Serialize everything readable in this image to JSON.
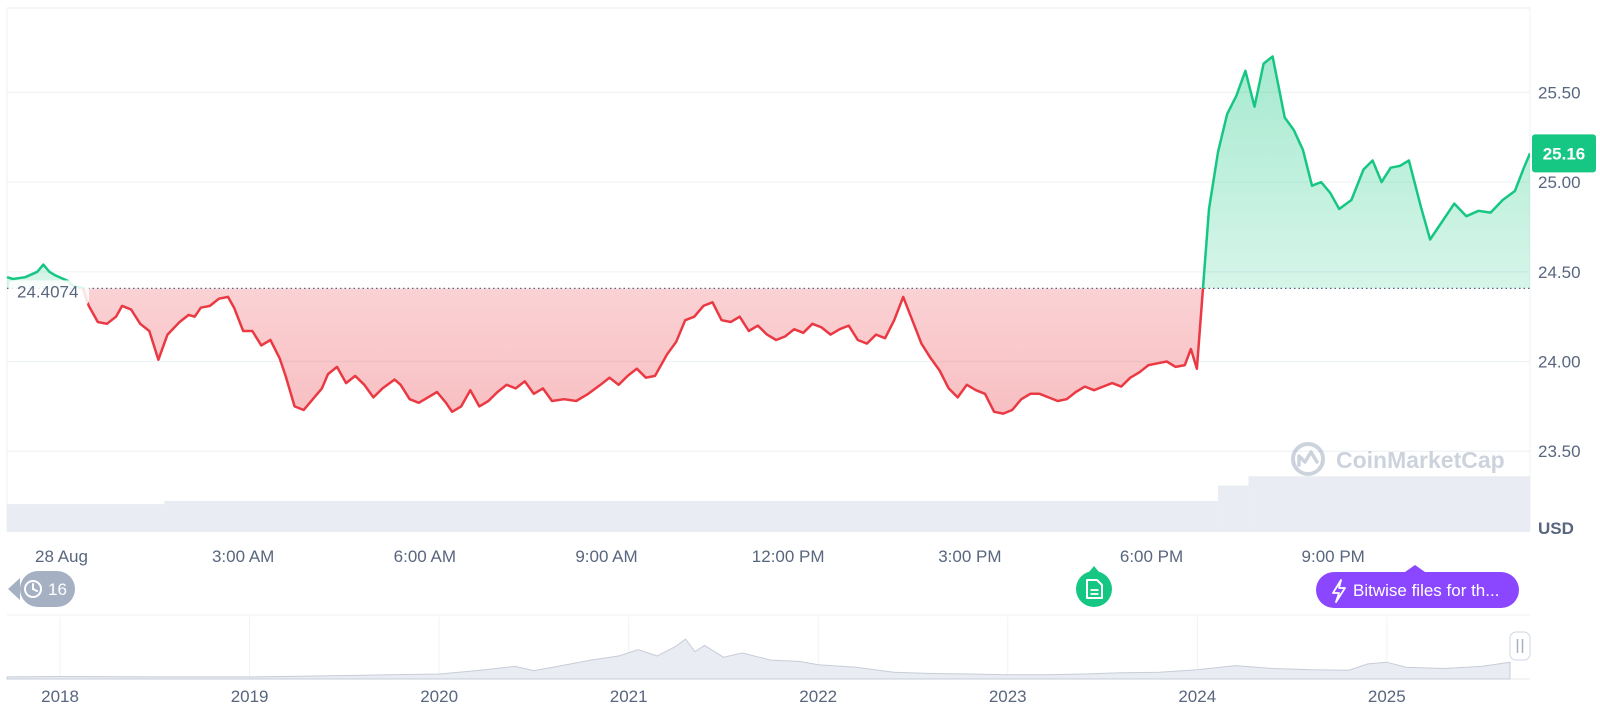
{
  "chart_data": {
    "type": "area",
    "currency": "USD",
    "baseline_value": 24.4074,
    "baseline_label": "24.4074",
    "current_value": 25.16,
    "current_label": "25.16",
    "ylim": [
      23.05,
      25.97
    ],
    "y_ticks": [
      {
        "value": 23.5,
        "label": "23.50"
      },
      {
        "value": 24.0,
        "label": "24.00"
      },
      {
        "value": 24.5,
        "label": "24.50"
      },
      {
        "value": 25.0,
        "label": "25.00"
      },
      {
        "value": 25.5,
        "label": "25.50"
      }
    ],
    "x_range_hours": [
      -0.9,
      24.25
    ],
    "x_ticks": [
      {
        "hour": 0,
        "label": "28 Aug"
      },
      {
        "hour": 3,
        "label": "3:00 AM"
      },
      {
        "hour": 6,
        "label": "6:00 AM"
      },
      {
        "hour": 9,
        "label": "9:00 AM"
      },
      {
        "hour": 12,
        "label": "12:00 PM"
      },
      {
        "hour": 15,
        "label": "3:00 PM"
      },
      {
        "hour": 18,
        "label": "6:00 PM"
      },
      {
        "hour": 21,
        "label": "9:00 PM"
      }
    ],
    "series": [
      {
        "unit": "hours since 28 Aug 00:00",
        "x": [
          -0.9,
          -0.8,
          -0.6,
          -0.4,
          -0.3,
          -0.2,
          -0.1,
          0.1,
          0.2,
          0.35,
          0.45,
          0.6,
          0.75,
          0.9,
          1.0,
          1.15,
          1.3,
          1.45,
          1.6,
          1.75,
          1.95,
          2.1,
          2.2,
          2.3,
          2.45,
          2.6,
          2.75,
          2.85,
          3.0,
          3.15,
          3.3,
          3.45,
          3.6,
          3.7,
          3.85,
          4.0,
          4.15,
          4.3,
          4.4,
          4.55,
          4.7,
          4.85,
          5.0,
          5.15,
          5.3,
          5.5,
          5.6,
          5.75,
          5.9,
          6.05,
          6.2,
          6.35,
          6.45,
          6.6,
          6.75,
          6.9,
          7.05,
          7.2,
          7.35,
          7.5,
          7.65,
          7.8,
          7.95,
          8.1,
          8.3,
          8.5,
          8.7,
          8.9,
          9.05,
          9.2,
          9.35,
          9.5,
          9.65,
          9.8,
          10.0,
          10.15,
          10.3,
          10.45,
          10.6,
          10.75,
          10.9,
          11.05,
          11.2,
          11.35,
          11.5,
          11.65,
          11.8,
          11.95,
          12.1,
          12.25,
          12.4,
          12.55,
          12.7,
          12.85,
          13.0,
          13.15,
          13.3,
          13.45,
          13.6,
          13.75,
          13.9,
          14.05,
          14.2,
          14.35,
          14.5,
          14.65,
          14.8,
          14.95,
          15.1,
          15.25,
          15.4,
          15.55,
          15.7,
          15.85,
          16.0,
          16.15,
          16.3,
          16.45,
          16.6,
          16.75,
          16.9,
          17.05,
          17.2,
          17.35,
          17.5,
          17.65,
          17.8,
          17.95,
          18.1,
          18.25,
          18.4,
          18.55,
          18.65,
          18.75,
          18.85,
          18.95,
          19.1,
          19.25,
          19.4,
          19.55,
          19.7,
          19.85,
          20.0,
          20.1,
          20.2,
          20.35,
          20.5,
          20.65,
          20.8,
          20.95,
          21.1,
          21.3,
          21.5,
          21.65,
          21.8,
          21.95,
          22.1,
          22.25,
          22.45,
          22.6,
          22.8,
          23.0,
          23.2,
          23.4,
          23.6,
          23.8,
          24.0,
          24.15,
          24.25
        ],
        "values": [
          24.47,
          24.46,
          24.47,
          24.5,
          24.54,
          24.5,
          24.48,
          24.45,
          24.42,
          24.41,
          24.31,
          24.22,
          24.21,
          24.25,
          24.31,
          24.29,
          24.21,
          24.17,
          24.01,
          24.15,
          24.22,
          24.26,
          24.25,
          24.3,
          24.31,
          24.35,
          24.36,
          24.3,
          24.17,
          24.17,
          24.09,
          24.12,
          24.02,
          23.92,
          23.75,
          23.73,
          23.79,
          23.85,
          23.93,
          23.97,
          23.88,
          23.92,
          23.87,
          23.8,
          23.85,
          23.9,
          23.87,
          23.79,
          23.77,
          23.8,
          23.83,
          23.77,
          23.72,
          23.75,
          23.84,
          23.75,
          23.78,
          23.83,
          23.87,
          23.85,
          23.89,
          23.82,
          23.85,
          23.78,
          23.79,
          23.78,
          23.82,
          23.87,
          23.91,
          23.87,
          23.92,
          23.96,
          23.91,
          23.92,
          24.04,
          24.11,
          24.23,
          24.25,
          24.31,
          24.33,
          24.23,
          24.22,
          24.25,
          24.17,
          24.2,
          24.15,
          24.12,
          24.14,
          24.18,
          24.16,
          24.21,
          24.19,
          24.15,
          24.18,
          24.2,
          24.12,
          24.1,
          24.15,
          24.13,
          24.23,
          24.36,
          24.23,
          24.1,
          24.02,
          23.95,
          23.85,
          23.8,
          23.87,
          23.84,
          23.82,
          23.72,
          23.71,
          23.73,
          23.79,
          23.82,
          23.82,
          23.8,
          23.78,
          23.79,
          23.83,
          23.86,
          23.84,
          23.86,
          23.88,
          23.86,
          23.91,
          23.94,
          23.98,
          23.99,
          24.0,
          23.97,
          23.98,
          24.07,
          23.96,
          24.41,
          24.85,
          25.17,
          25.38,
          25.48,
          25.62,
          25.42,
          25.66,
          25.7,
          25.53,
          25.36,
          25.29,
          25.18,
          24.98,
          25.0,
          24.94,
          24.85,
          24.9,
          25.07,
          25.12,
          25.0,
          25.08,
          25.09,
          25.12,
          24.86,
          24.68,
          24.78,
          24.88,
          24.81,
          24.84,
          24.83,
          24.9,
          24.95,
          25.08,
          25.16
        ]
      }
    ],
    "volume_levels": [
      {
        "from_hour": -0.9,
        "to_hour": 1.7,
        "level": 0.45
      },
      {
        "from_hour": 1.7,
        "to_hour": 19.1,
        "level": 0.5
      },
      {
        "from_hour": 19.1,
        "to_hour": 19.6,
        "level": 0.75
      },
      {
        "from_hour": 19.6,
        "to_hour": 24.25,
        "level": 0.9
      }
    ],
    "colors": {
      "up": "#16c784",
      "down": "#ea3943",
      "axis_text": "#58667e",
      "grid": "#eff2f5",
      "volume": "#e9ecf2"
    }
  },
  "history": {
    "ticks": [
      {
        "year": 2018,
        "label": "2018"
      },
      {
        "year": 2019,
        "label": "2019"
      },
      {
        "year": 2020,
        "label": "2020"
      },
      {
        "year": 2021,
        "label": "2021"
      },
      {
        "year": 2022,
        "label": "2022"
      },
      {
        "year": 2023,
        "label": "2023"
      },
      {
        "year": 2024,
        "label": "2024"
      },
      {
        "year": 2025,
        "label": "2025"
      }
    ],
    "x": [
      2017.72,
      2018.0,
      2018.5,
      2019.0,
      2019.3,
      2019.6,
      2020.0,
      2020.2,
      2020.4,
      2020.5,
      2020.6,
      2020.8,
      2020.95,
      2021.05,
      2021.15,
      2021.25,
      2021.3,
      2021.35,
      2021.4,
      2021.5,
      2021.6,
      2021.75,
      2021.9,
      2022.0,
      2022.2,
      2022.4,
      2022.6,
      2022.8,
      2023.0,
      2023.2,
      2023.4,
      2023.6,
      2023.8,
      2024.0,
      2024.2,
      2024.4,
      2024.6,
      2024.8,
      2024.9,
      2025.0,
      2025.1,
      2025.3,
      2025.5,
      2025.65
    ],
    "values": [
      0.05,
      0.06,
      0.05,
      0.05,
      0.07,
      0.09,
      0.12,
      0.2,
      0.3,
      0.2,
      0.28,
      0.45,
      0.55,
      0.7,
      0.55,
      0.78,
      0.95,
      0.65,
      0.8,
      0.52,
      0.62,
      0.45,
      0.42,
      0.34,
      0.28,
      0.16,
      0.13,
      0.12,
      0.1,
      0.1,
      0.12,
      0.15,
      0.16,
      0.22,
      0.32,
      0.25,
      0.22,
      0.21,
      0.36,
      0.4,
      0.28,
      0.25,
      0.3,
      0.4
    ]
  },
  "ui": {
    "history_badge_count": "16",
    "news_pill_text": "Bitwise files for th...",
    "watermark_text": "CoinMarketCap"
  }
}
